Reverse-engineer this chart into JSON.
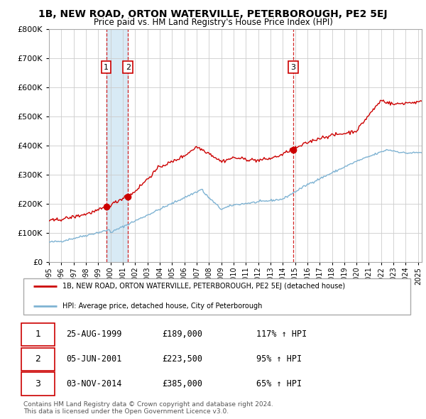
{
  "title": "1B, NEW ROAD, ORTON WATERVILLE, PETERBOROUGH, PE2 5EJ",
  "subtitle": "Price paid vs. HM Land Registry's House Price Index (HPI)",
  "ylim": [
    0,
    800000
  ],
  "yticks": [
    0,
    100000,
    200000,
    300000,
    400000,
    500000,
    600000,
    700000,
    800000
  ],
  "xlim_start": 1995.0,
  "xlim_end": 2025.3,
  "sale_color": "#cc0000",
  "hpi_color": "#7fb3d3",
  "vline_color": "#cc0000",
  "shade_color": "#d8eaf5",
  "sale_dates_num": [
    1999.646,
    2001.427,
    2014.839
  ],
  "sale_prices": [
    189000,
    223500,
    385000
  ],
  "sale_labels": [
    "1",
    "2",
    "3"
  ],
  "legend_sale_label": "1B, NEW ROAD, ORTON WATERVILLE, PETERBOROUGH, PE2 5EJ (detached house)",
  "legend_hpi_label": "HPI: Average price, detached house, City of Peterborough",
  "table_rows": [
    [
      "1",
      "25-AUG-1999",
      "£189,000",
      "117% ↑ HPI"
    ],
    [
      "2",
      "05-JUN-2001",
      "£223,500",
      "95% ↑ HPI"
    ],
    [
      "3",
      "03-NOV-2014",
      "£385,000",
      "65% ↑ HPI"
    ]
  ],
  "footer": "Contains HM Land Registry data © Crown copyright and database right 2024.\nThis data is licensed under the Open Government Licence v3.0.",
  "background_color": "#ffffff",
  "grid_color": "#cccccc"
}
